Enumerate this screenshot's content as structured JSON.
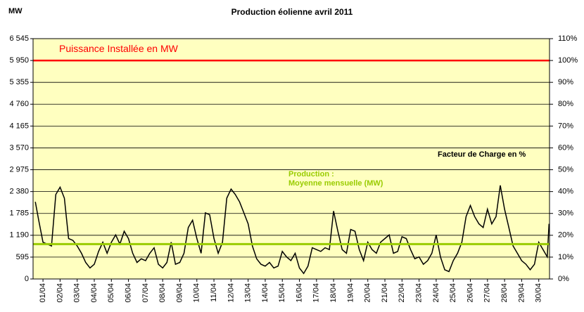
{
  "chart_data": {
    "type": "line",
    "title": "Production éolienne avril 2011",
    "y_axis_label": "MW",
    "y2_axis_label": "Facteur de Charge en %",
    "xlim": [
      0.42,
      30.63
    ],
    "xticks": [
      {
        "value": 1,
        "label": "01/04"
      },
      {
        "value": 2,
        "label": "02/04"
      },
      {
        "value": 3,
        "label": "03/04"
      },
      {
        "value": 4,
        "label": "04/04"
      },
      {
        "value": 5,
        "label": "05/04"
      },
      {
        "value": 6,
        "label": "06/04"
      },
      {
        "value": 7,
        "label": "07/04"
      },
      {
        "value": 8,
        "label": "08/04"
      },
      {
        "value": 9,
        "label": "09/04"
      },
      {
        "value": 10,
        "label": "10/04"
      },
      {
        "value": 11,
        "label": "11/04"
      },
      {
        "value": 12,
        "label": "12/04"
      },
      {
        "value": 13,
        "label": "13/04"
      },
      {
        "value": 14,
        "label": "14/04"
      },
      {
        "value": 15,
        "label": "15/04"
      },
      {
        "value": 16,
        "label": "16/04"
      },
      {
        "value": 17,
        "label": "17/04"
      },
      {
        "value": 18,
        "label": "18/04"
      },
      {
        "value": 19,
        "label": "19/04"
      },
      {
        "value": 20,
        "label": "20/04"
      },
      {
        "value": 21,
        "label": "21/04"
      },
      {
        "value": 22,
        "label": "22/04"
      },
      {
        "value": 23,
        "label": "23/04"
      },
      {
        "value": 24,
        "label": "24/04"
      },
      {
        "value": 25,
        "label": "25/04"
      },
      {
        "value": 26,
        "label": "26/04"
      },
      {
        "value": 27,
        "label": "27/04"
      },
      {
        "value": 28,
        "label": "28/04"
      },
      {
        "value": 29,
        "label": "29/04"
      },
      {
        "value": 30,
        "label": "30/04"
      }
    ],
    "ylim": [
      0,
      6545
    ],
    "yticks": [
      0,
      595,
      {
        "value": 1190,
        "label": "1 190"
      },
      {
        "value": 1785,
        "label": "1 785"
      },
      {
        "value": 2380,
        "label": "2 380"
      },
      {
        "value": 2975,
        "label": "2 975"
      },
      {
        "value": 3570,
        "label": "3 570"
      },
      {
        "value": 4165,
        "label": "4 165"
      },
      {
        "value": 4760,
        "label": "4 760"
      },
      {
        "value": 5355,
        "label": "5 355"
      },
      {
        "value": 5950,
        "label": "5 950"
      },
      {
        "value": 6545,
        "label": "6 545"
      }
    ],
    "y2lim": [
      0,
      110
    ],
    "y2ticks": [
      {
        "value": 0,
        "label": "0%"
      },
      {
        "value": 10,
        "label": "10%"
      },
      {
        "value": 20,
        "label": "20%"
      },
      {
        "value": 30,
        "label": "30%"
      },
      {
        "value": 40,
        "label": "40%"
      },
      {
        "value": 50,
        "label": "50%"
      },
      {
        "value": 60,
        "label": "60%"
      },
      {
        "value": 70,
        "label": "70%"
      },
      {
        "value": 80,
        "label": "80%"
      },
      {
        "value": 90,
        "label": "90%"
      },
      {
        "value": 100,
        "label": "100%"
      },
      {
        "value": 110,
        "label": "110%"
      }
    ],
    "grid": true,
    "plot_background": "#ffffc0",
    "installed_capacity": {
      "label": "Puissance Installée en MW",
      "value": 5950,
      "color": "#ff0000"
    },
    "monthly_mean": {
      "label": [
        "Production :",
        "Moyenne mensuelle (MW)"
      ],
      "value": 950,
      "color": "#99cc00"
    },
    "series": [
      {
        "color": "#000000",
        "x": [
          0.55,
          0.75,
          1,
          1.25,
          1.5,
          1.75,
          2,
          2.25,
          2.5,
          2.75,
          3,
          3.25,
          3.5,
          3.75,
          4,
          4.25,
          4.5,
          4.75,
          5,
          5.25,
          5.5,
          5.75,
          6,
          6.25,
          6.5,
          6.75,
          7,
          7.25,
          7.5,
          7.75,
          8,
          8.25,
          8.5,
          8.75,
          9,
          9.25,
          9.5,
          9.75,
          10,
          10.25,
          10.5,
          10.75,
          11,
          11.25,
          11.5,
          11.75,
          12,
          12.25,
          12.5,
          12.75,
          13,
          13.25,
          13.5,
          13.75,
          14,
          14.25,
          14.5,
          14.75,
          15,
          15.25,
          15.5,
          15.75,
          16,
          16.25,
          16.5,
          16.75,
          17,
          17.25,
          17.5,
          17.75,
          18,
          18.25,
          18.5,
          18.75,
          19,
          19.25,
          19.5,
          19.75,
          20,
          20.25,
          20.5,
          20.75,
          21,
          21.25,
          21.5,
          21.75,
          22,
          22.25,
          22.5,
          22.75,
          23,
          23.25,
          23.5,
          23.75,
          24,
          24.25,
          24.5,
          24.75,
          25,
          25.25,
          25.5,
          25.75,
          26,
          26.25,
          26.5,
          26.75,
          27,
          27.25,
          27.5,
          27.75,
          28,
          28.25,
          28.5,
          28.75,
          29,
          29.25,
          29.5,
          29.75,
          30,
          30.25,
          30.5,
          30.6
        ],
        "values": [
          2100,
          1600,
          1000,
          950,
          900,
          2300,
          2500,
          2200,
          1100,
          1050,
          900,
          700,
          450,
          300,
          400,
          750,
          1000,
          700,
          1000,
          1200,
          950,
          1300,
          1100,
          700,
          450,
          550,
          500,
          700,
          850,
          400,
          300,
          450,
          1000,
          400,
          450,
          700,
          1400,
          1600,
          1100,
          700,
          1800,
          1750,
          1100,
          700,
          1000,
          2200,
          2450,
          2300,
          2100,
          1800,
          1500,
          900,
          550,
          400,
          350,
          450,
          300,
          350,
          750,
          600,
          500,
          700,
          300,
          150,
          350,
          850,
          800,
          750,
          850,
          800,
          1850,
          1300,
          800,
          700,
          1350,
          1300,
          800,
          500,
          1000,
          800,
          700,
          1000,
          1100,
          1200,
          700,
          750,
          1150,
          1100,
          800,
          550,
          600,
          400,
          500,
          700,
          1200,
          600,
          250,
          200,
          500,
          700,
          1000,
          1700,
          2000,
          1700,
          1500,
          1400,
          1900,
          1500,
          1700,
          2550,
          1900,
          1400,
          900,
          700,
          500,
          400,
          250,
          400,
          1000,
          800,
          600,
          1500
        ]
      }
    ]
  }
}
